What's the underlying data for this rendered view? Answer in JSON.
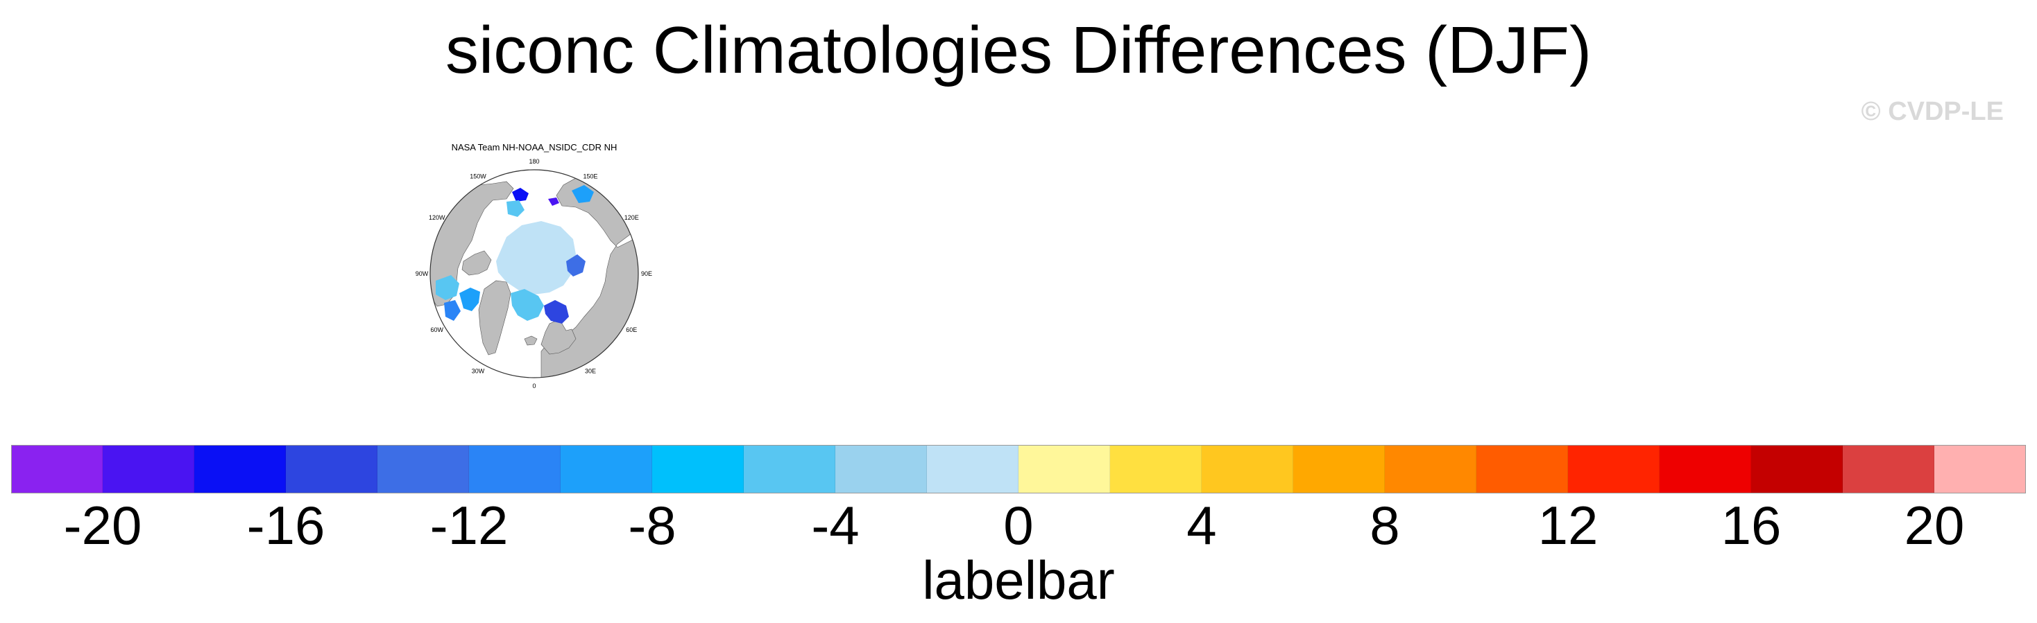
{
  "figure": {
    "title": "siconc Climatologies Differences (DJF)",
    "watermark": "© CVDP-LE"
  },
  "panel": {
    "title": "NASA Team NH-NOAA_NSIDC_CDR NH",
    "lon_labels": [
      "180",
      "150E",
      "120E",
      "90E",
      "60E",
      "30E",
      "0",
      "30W",
      "60W",
      "90W",
      "120W",
      "150W"
    ],
    "colors": {
      "land": "#bdbdbd",
      "ocean": "#ffffff",
      "coast": "#555555"
    }
  },
  "labelbar": {
    "caption": "labelbar",
    "tick_labels": [
      "-20",
      "-16",
      "-12",
      "-8",
      "-4",
      "0",
      "4",
      "8",
      "12",
      "16",
      "20"
    ],
    "colors": [
      "#8a22f0",
      "#4a14f2",
      "#0a10f5",
      "#2d45e0",
      "#3d6ee6",
      "#2a84f6",
      "#1da0fa",
      "#00c0fc",
      "#58c6f2",
      "#9ad2ee",
      "#bfe2f6",
      "#fff79a",
      "#ffe040",
      "#ffc71f",
      "#ffa800",
      "#ff8800",
      "#ff5c00",
      "#ff2400",
      "#ee0000",
      "#c40000",
      "#db4040",
      "#ffb0b0"
    ]
  }
}
